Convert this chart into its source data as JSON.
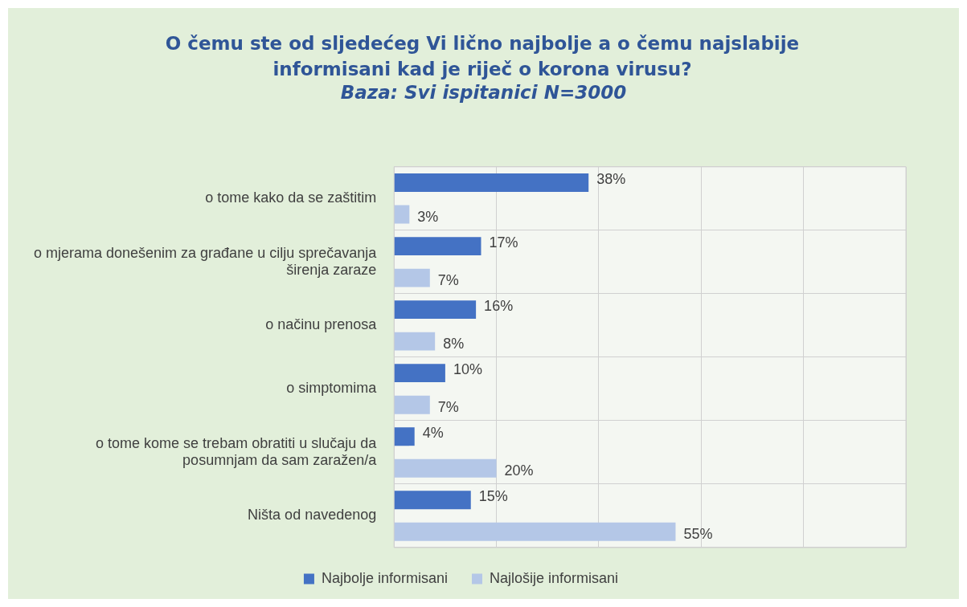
{
  "chart_data": {
    "type": "bar",
    "orientation": "horizontal",
    "title": "O čemu ste od sljedećeg Vi lično najbolje a o čemu najslabije informisani kad je riječ o korona virusu?",
    "subtitle": "Baza: Svi ispitanici N=3000",
    "categories": [
      "o tome kako da se zaštitim",
      "o mjerama donešenim za građane u cilju sprečavanja širenja zaraze",
      "o načinu prenosa",
      "o simptomima",
      "o tome kome se trebam obratiti u slučaju da posumnjam da sam zaražen/a",
      "Ništa od navedenog"
    ],
    "series": [
      {
        "name": "Najbolje informisani",
        "color": "#4472c4",
        "values": [
          38,
          17,
          16,
          10,
          4,
          15
        ],
        "value_labels": [
          "38%",
          "17%",
          "16%",
          "10%",
          "4%",
          "15%"
        ]
      },
      {
        "name": "Najlošije informisani",
        "color": "#b4c7e7",
        "values": [
          3,
          7,
          8,
          7,
          20,
          55
        ],
        "value_labels": [
          "3%",
          "7%",
          "8%",
          "7%",
          "20%",
          "55%"
        ]
      }
    ],
    "xlim": [
      0,
      100
    ],
    "xticks": [
      {
        "value": 0,
        "label": null
      },
      {
        "value": 20,
        "label": null
      },
      {
        "value": 40,
        "label": null
      },
      {
        "value": 60,
        "label": null
      },
      {
        "value": 80,
        "label": null
      },
      {
        "value": 100,
        "label": null
      }
    ],
    "tick_labels": "y",
    "grid": "x",
    "legend": "bottom"
  }
}
